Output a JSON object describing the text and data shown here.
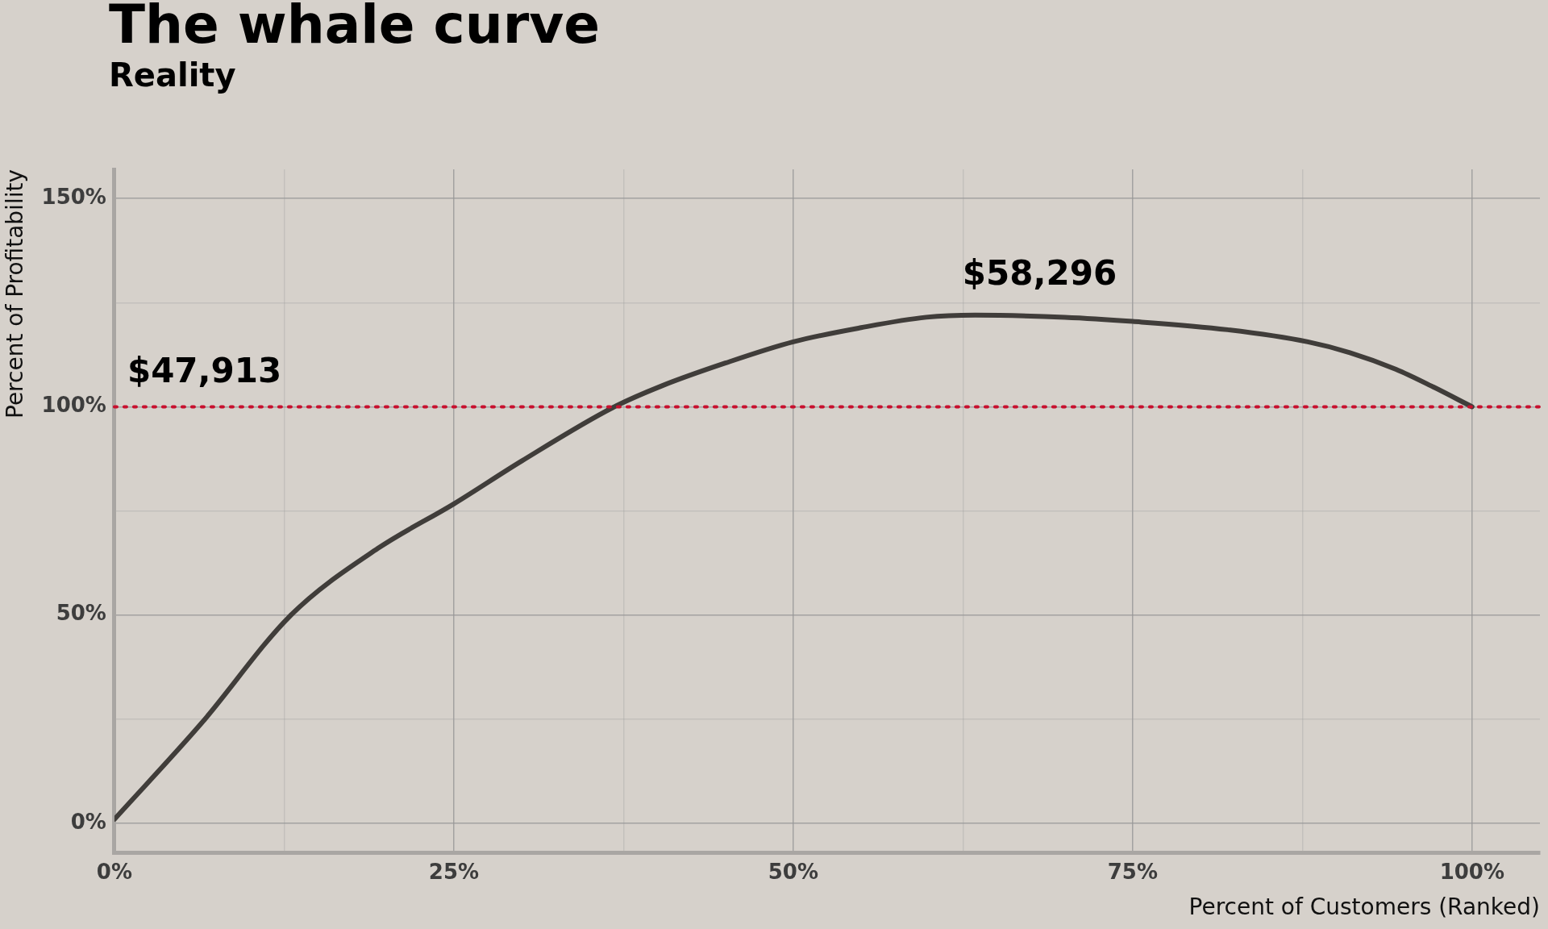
{
  "chart_data": {
    "type": "line",
    "title": "The whale curve",
    "subtitle": "Reality",
    "xlabel": "Percent of Customers (Ranked)",
    "ylabel": "Percent of Profitability",
    "x": [
      0,
      6.4,
      13,
      19.4,
      25,
      30,
      36.7,
      40.3,
      45,
      50,
      55,
      59.8,
      63.4,
      70,
      75,
      82,
      87.9,
      91,
      94.4,
      97,
      100
    ],
    "series": [
      {
        "color": "#403d3a",
        "values": [
          1,
          24,
          50,
          66,
          76.7,
          87,
          99.8,
          105,
          110.5,
          115.6,
          119,
          121.5,
          122,
          121.5,
          120.5,
          118.5,
          115.6,
          113,
          109,
          105,
          100
        ]
      }
    ],
    "xlim": [
      0,
      105
    ],
    "ylim": [
      -7,
      157
    ],
    "xticks": [
      {
        "value": 0,
        "label": "0%"
      },
      {
        "value": 12.5,
        "label": null
      },
      {
        "value": 25,
        "label": "25%"
      },
      {
        "value": 37.5,
        "label": null
      },
      {
        "value": 50,
        "label": "50%"
      },
      {
        "value": 62.5,
        "label": null
      },
      {
        "value": 75,
        "label": "75%"
      },
      {
        "value": 87.5,
        "label": null
      },
      {
        "value": 100,
        "label": "100%"
      }
    ],
    "yticks": [
      {
        "value": 0,
        "label": "0%"
      },
      {
        "value": 25,
        "label": null
      },
      {
        "value": 50,
        "label": "50%"
      },
      {
        "value": 75,
        "label": null
      },
      {
        "value": 100,
        "label": "100%"
      },
      {
        "value": 125,
        "label": null
      },
      {
        "value": 150,
        "label": "150%"
      }
    ],
    "ref_lines": [
      {
        "axis": "y",
        "value": 100,
        "label": null,
        "color": "#c8102e",
        "line_style": "dotted"
      }
    ],
    "annotations": [
      {
        "text": "$47,913",
        "x": 0,
        "y": 100
      },
      {
        "text": "$58,296",
        "x": 63.4,
        "y": 122
      }
    ],
    "grid": true,
    "legend": false,
    "marker": "none",
    "line_style": "solid"
  }
}
